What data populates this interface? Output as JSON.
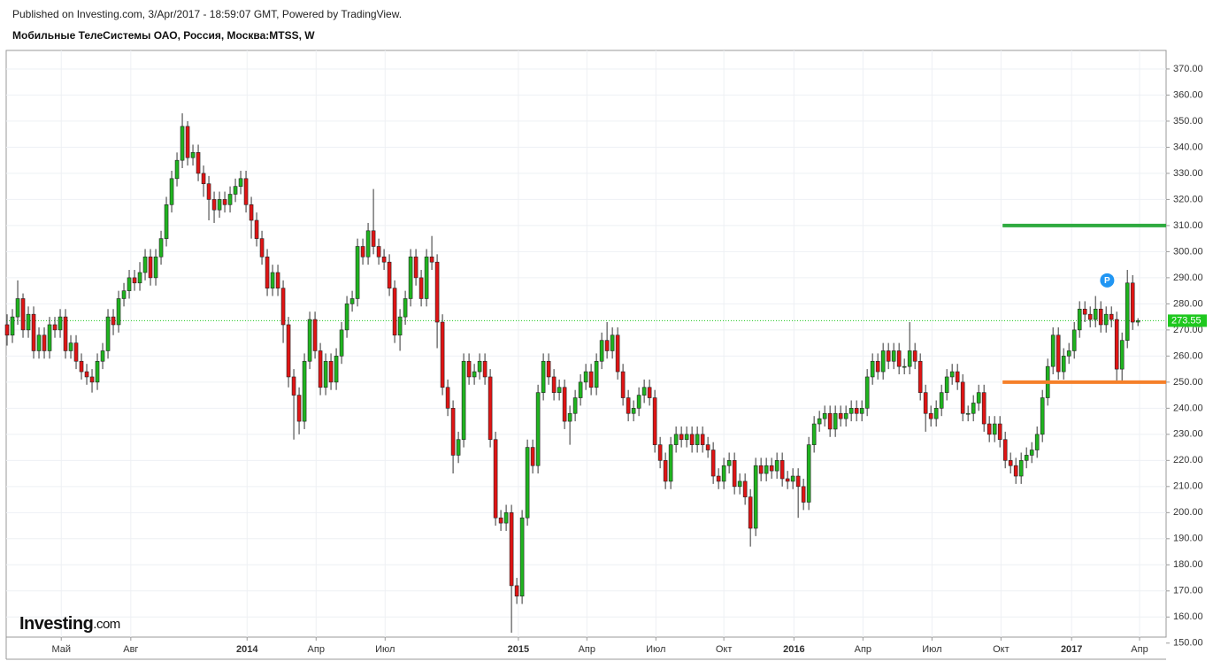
{
  "header": {
    "published": "Published on Investing.com, 3/Apr/2017 - 18:59:07 GMT, Powered by TradingView.",
    "title": "Мобильные ТелеСистемы ОАО, Россия, Москва:MTSS, W"
  },
  "logo": {
    "name": "Investing",
    "suffix": ".com"
  },
  "chart_data": {
    "type": "candlestick",
    "up_color": "#1fb41f",
    "down_color": "#e01414",
    "xlim": [
      -0.17,
      218.3
    ],
    "xticks": [
      {
        "value": 10.2,
        "label": "Май"
      },
      {
        "value": 23.3,
        "label": "Авг"
      },
      {
        "value": 45.2,
        "label": "2014"
      },
      {
        "value": 58.2,
        "label": "Апр"
      },
      {
        "value": 71.2,
        "label": "Июл"
      },
      {
        "value": 96.3,
        "label": "2015"
      },
      {
        "value": 109.2,
        "label": "Апр"
      },
      {
        "value": 122.2,
        "label": "Июл"
      },
      {
        "value": 135,
        "label": "Окт"
      },
      {
        "value": 148.2,
        "label": "2016"
      },
      {
        "value": 161.2,
        "label": "Апр"
      },
      {
        "value": 174.2,
        "label": "Июл"
      },
      {
        "value": 187.2,
        "label": "Окт"
      },
      {
        "value": 200.5,
        "label": "2017"
      },
      {
        "value": 213.3,
        "label": "Апр"
      }
    ],
    "ylim": [
      152.3,
      377.1
    ],
    "yticks": [
      {
        "value": 150,
        "label": "150.00"
      },
      {
        "value": 160,
        "label": "160.00"
      },
      {
        "value": 170,
        "label": "170.00"
      },
      {
        "value": 180,
        "label": "180.00"
      },
      {
        "value": 190,
        "label": "190.00"
      },
      {
        "value": 200,
        "label": "200.00"
      },
      {
        "value": 210,
        "label": "210.00"
      },
      {
        "value": 220,
        "label": "220.00"
      },
      {
        "value": 230,
        "label": "230.00"
      },
      {
        "value": 240,
        "label": "240.00"
      },
      {
        "value": 250,
        "label": "250.00"
      },
      {
        "value": 260,
        "label": "260.00"
      },
      {
        "value": 270,
        "label": "270.00"
      },
      {
        "value": 280,
        "label": "280.00"
      },
      {
        "value": 290,
        "label": "290.00"
      },
      {
        "value": 300,
        "label": "300.00"
      },
      {
        "value": 310,
        "label": "310.00"
      },
      {
        "value": 320,
        "label": "320.00"
      },
      {
        "value": 330,
        "label": "330.00"
      },
      {
        "value": 340,
        "label": "340.00"
      },
      {
        "value": 350,
        "label": "350.00"
      },
      {
        "value": 360,
        "label": "360.00"
      },
      {
        "value": 370,
        "label": "370.00"
      }
    ],
    "grid": true,
    "last_price": {
      "value": 273.55,
      "label": "273.55",
      "color": "#1ec81e"
    },
    "levels": [
      {
        "value": 310,
        "from": 187.5,
        "color": "#2eaa3f"
      },
      {
        "value": 250,
        "from": 187.5,
        "color": "#f5802a"
      }
    ],
    "marker": {
      "label": "P",
      "x": 207.2,
      "value": 289,
      "color": "#2196f3"
    },
    "candles": [
      [
        272,
        276,
        264,
        268
      ],
      [
        268,
        278,
        265,
        275
      ],
      [
        275,
        289,
        272,
        282
      ],
      [
        282,
        284,
        267,
        270
      ],
      [
        270,
        279,
        267,
        276
      ],
      [
        276,
        279,
        259,
        262
      ],
      [
        262,
        271,
        259,
        268
      ],
      [
        268,
        271,
        259,
        262
      ],
      [
        262,
        275,
        259,
        272
      ],
      [
        272,
        275,
        267,
        270
      ],
      [
        270,
        278,
        267,
        275
      ],
      [
        275,
        278,
        259,
        262
      ],
      [
        262,
        268,
        259,
        265
      ],
      [
        265,
        268,
        255,
        258
      ],
      [
        258,
        261,
        251,
        254
      ],
      [
        254,
        257,
        249,
        252
      ],
      [
        252,
        255,
        246,
        250
      ],
      [
        250,
        261,
        247,
        258
      ],
      [
        258,
        265,
        255,
        262
      ],
      [
        262,
        278,
        259,
        275
      ],
      [
        275,
        278,
        268,
        272
      ],
      [
        272,
        285,
        269,
        282
      ],
      [
        282,
        288,
        279,
        285
      ],
      [
        285,
        293,
        282,
        290
      ],
      [
        290,
        293,
        285,
        288
      ],
      [
        288,
        296,
        285,
        292
      ],
      [
        292,
        301,
        289,
        298
      ],
      [
        298,
        301,
        287,
        290
      ],
      [
        290,
        301,
        287,
        298
      ],
      [
        298,
        308,
        295,
        305
      ],
      [
        305,
        321,
        302,
        318
      ],
      [
        318,
        331,
        315,
        328
      ],
      [
        328,
        338,
        325,
        335
      ],
      [
        335,
        353,
        332,
        348
      ],
      [
        348,
        350,
        333,
        336
      ],
      [
        336,
        341,
        333,
        338
      ],
      [
        338,
        341,
        327,
        330
      ],
      [
        330,
        333,
        321,
        326
      ],
      [
        326,
        329,
        312,
        320
      ],
      [
        320,
        323,
        311,
        316
      ],
      [
        316,
        323,
        313,
        320
      ],
      [
        320,
        323,
        315,
        318
      ],
      [
        318,
        325,
        315,
        322
      ],
      [
        322,
        328,
        319,
        325
      ],
      [
        325,
        331,
        322,
        328
      ],
      [
        328,
        331,
        315,
        318
      ],
      [
        318,
        321,
        305,
        312
      ],
      [
        312,
        315,
        302,
        305
      ],
      [
        305,
        308,
        295,
        298
      ],
      [
        298,
        301,
        283,
        286
      ],
      [
        286,
        295,
        283,
        292
      ],
      [
        292,
        295,
        283,
        286
      ],
      [
        286,
        289,
        265,
        272
      ],
      [
        272,
        275,
        248,
        252
      ],
      [
        252,
        255,
        228,
        245
      ],
      [
        245,
        248,
        230,
        235
      ],
      [
        235,
        261,
        232,
        258
      ],
      [
        258,
        277,
        255,
        274
      ],
      [
        274,
        277,
        259,
        262
      ],
      [
        262,
        265,
        245,
        248
      ],
      [
        248,
        261,
        245,
        258
      ],
      [
        258,
        261,
        247,
        250
      ],
      [
        250,
        263,
        247,
        260
      ],
      [
        260,
        273,
        257,
        270
      ],
      [
        270,
        283,
        267,
        280
      ],
      [
        280,
        285,
        277,
        282
      ],
      [
        282,
        305,
        279,
        302
      ],
      [
        302,
        305,
        295,
        298
      ],
      [
        298,
        311,
        295,
        308
      ],
      [
        308,
        324,
        299,
        302
      ],
      [
        302,
        305,
        295,
        298
      ],
      [
        298,
        301,
        293,
        296
      ],
      [
        296,
        299,
        283,
        286
      ],
      [
        286,
        289,
        265,
        268
      ],
      [
        268,
        278,
        262,
        275
      ],
      [
        275,
        285,
        272,
        282
      ],
      [
        282,
        301,
        279,
        298
      ],
      [
        298,
        301,
        287,
        290
      ],
      [
        290,
        293,
        279,
        282
      ],
      [
        282,
        301,
        279,
        298
      ],
      [
        298,
        306,
        293,
        296
      ],
      [
        296,
        299,
        263,
        273
      ],
      [
        273,
        276,
        245,
        248
      ],
      [
        248,
        251,
        237,
        240
      ],
      [
        240,
        243,
        215,
        222
      ],
      [
        222,
        231,
        219,
        228
      ],
      [
        228,
        261,
        225,
        258
      ],
      [
        258,
        261,
        249,
        252
      ],
      [
        252,
        257,
        249,
        254
      ],
      [
        254,
        261,
        251,
        258
      ],
      [
        258,
        261,
        249,
        252
      ],
      [
        252,
        255,
        225,
        228
      ],
      [
        228,
        231,
        195,
        198
      ],
      [
        198,
        201,
        193,
        196
      ],
      [
        196,
        203,
        193,
        200
      ],
      [
        200,
        203,
        154,
        172
      ],
      [
        172,
        175,
        165,
        168
      ],
      [
        168,
        201,
        165,
        198
      ],
      [
        198,
        228,
        195,
        225
      ],
      [
        225,
        228,
        215,
        218
      ],
      [
        218,
        249,
        215,
        246
      ],
      [
        246,
        261,
        243,
        258
      ],
      [
        258,
        261,
        249,
        252
      ],
      [
        252,
        255,
        243,
        246
      ],
      [
        246,
        251,
        243,
        248
      ],
      [
        248,
        251,
        232,
        235
      ],
      [
        235,
        241,
        226,
        238
      ],
      [
        238,
        247,
        235,
        244
      ],
      [
        244,
        253,
        241,
        250
      ],
      [
        250,
        257,
        247,
        254
      ],
      [
        254,
        257,
        245,
        248
      ],
      [
        248,
        261,
        245,
        258
      ],
      [
        258,
        269,
        255,
        266
      ],
      [
        266,
        273,
        259,
        262
      ],
      [
        262,
        271,
        259,
        268
      ],
      [
        268,
        271,
        251,
        254
      ],
      [
        254,
        257,
        241,
        244
      ],
      [
        244,
        247,
        235,
        238
      ],
      [
        238,
        243,
        235,
        240
      ],
      [
        240,
        248,
        237,
        245
      ],
      [
        245,
        251,
        242,
        248
      ],
      [
        248,
        251,
        241,
        244
      ],
      [
        244,
        247,
        223,
        226
      ],
      [
        226,
        229,
        217,
        220
      ],
      [
        220,
        223,
        209,
        212
      ],
      [
        212,
        229,
        209,
        226
      ],
      [
        226,
        233,
        223,
        230
      ],
      [
        230,
        233,
        225,
        228
      ],
      [
        228,
        233,
        225,
        230
      ],
      [
        230,
        233,
        223,
        226
      ],
      [
        226,
        233,
        223,
        230
      ],
      [
        230,
        233,
        223,
        226
      ],
      [
        226,
        229,
        221,
        224
      ],
      [
        224,
        227,
        211,
        214
      ],
      [
        214,
        217,
        209,
        212
      ],
      [
        212,
        221,
        209,
        218
      ],
      [
        218,
        223,
        215,
        220
      ],
      [
        220,
        223,
        207,
        210
      ],
      [
        210,
        215,
        207,
        212
      ],
      [
        212,
        215,
        203,
        206
      ],
      [
        206,
        209,
        187,
        194
      ],
      [
        194,
        221,
        191,
        218
      ],
      [
        218,
        221,
        212,
        215
      ],
      [
        215,
        221,
        212,
        218
      ],
      [
        218,
        221,
        213,
        216
      ],
      [
        216,
        223,
        213,
        220
      ],
      [
        220,
        223,
        210,
        213
      ],
      [
        213,
        216,
        209,
        212
      ],
      [
        212,
        217,
        209,
        214
      ],
      [
        214,
        217,
        198,
        210
      ],
      [
        210,
        213,
        201,
        204
      ],
      [
        204,
        229,
        201,
        226
      ],
      [
        226,
        237,
        223,
        234
      ],
      [
        234,
        239,
        231,
        236
      ],
      [
        236,
        241,
        233,
        238
      ],
      [
        238,
        241,
        229,
        232
      ],
      [
        232,
        241,
        229,
        238
      ],
      [
        238,
        241,
        233,
        236
      ],
      [
        236,
        241,
        233,
        238
      ],
      [
        238,
        243,
        235,
        240
      ],
      [
        240,
        243,
        235,
        238
      ],
      [
        238,
        243,
        235,
        240
      ],
      [
        240,
        255,
        237,
        252
      ],
      [
        252,
        261,
        249,
        258
      ],
      [
        258,
        261,
        251,
        254
      ],
      [
        254,
        265,
        251,
        262
      ],
      [
        262,
        265,
        255,
        258
      ],
      [
        258,
        265,
        255,
        262
      ],
      [
        262,
        265,
        253,
        256
      ],
      [
        256,
        259,
        253,
        256
      ],
      [
        256,
        273,
        253,
        262
      ],
      [
        262,
        265,
        255,
        258
      ],
      [
        258,
        261,
        243,
        246
      ],
      [
        246,
        249,
        231,
        238
      ],
      [
        238,
        241,
        233,
        236
      ],
      [
        236,
        243,
        233,
        240
      ],
      [
        240,
        249,
        237,
        246
      ],
      [
        246,
        255,
        243,
        252
      ],
      [
        252,
        257,
        249,
        254
      ],
      [
        254,
        257,
        247,
        250
      ],
      [
        250,
        253,
        235,
        238
      ],
      [
        238,
        241,
        235,
        238
      ],
      [
        238,
        245,
        235,
        242
      ],
      [
        242,
        249,
        239,
        246
      ],
      [
        246,
        249,
        231,
        234
      ],
      [
        234,
        237,
        227,
        230
      ],
      [
        230,
        237,
        227,
        234
      ],
      [
        234,
        237,
        225,
        228
      ],
      [
        228,
        231,
        217,
        220
      ],
      [
        220,
        223,
        215,
        218
      ],
      [
        218,
        221,
        211,
        214
      ],
      [
        214,
        223,
        211,
        220
      ],
      [
        220,
        225,
        217,
        222
      ],
      [
        222,
        227,
        219,
        224
      ],
      [
        224,
        233,
        221,
        230
      ],
      [
        230,
        247,
        227,
        244
      ],
      [
        244,
        259,
        241,
        256
      ],
      [
        256,
        271,
        253,
        268
      ],
      [
        268,
        271,
        251,
        254
      ],
      [
        254,
        263,
        251,
        260
      ],
      [
        260,
        265,
        257,
        262
      ],
      [
        262,
        273,
        259,
        270
      ],
      [
        270,
        281,
        267,
        278
      ],
      [
        278,
        281,
        273,
        276
      ],
      [
        276,
        279,
        271,
        274
      ],
      [
        274,
        283,
        271,
        278
      ],
      [
        278,
        281,
        269,
        272
      ],
      [
        272,
        279,
        269,
        276
      ],
      [
        276,
        279,
        271,
        274
      ],
      [
        274,
        277,
        250,
        255
      ],
      [
        255,
        269,
        250,
        266
      ],
      [
        266,
        293,
        263,
        288
      ],
      [
        288,
        291,
        270,
        273
      ],
      [
        273,
        274.5,
        271.5,
        273.55
      ]
    ]
  }
}
